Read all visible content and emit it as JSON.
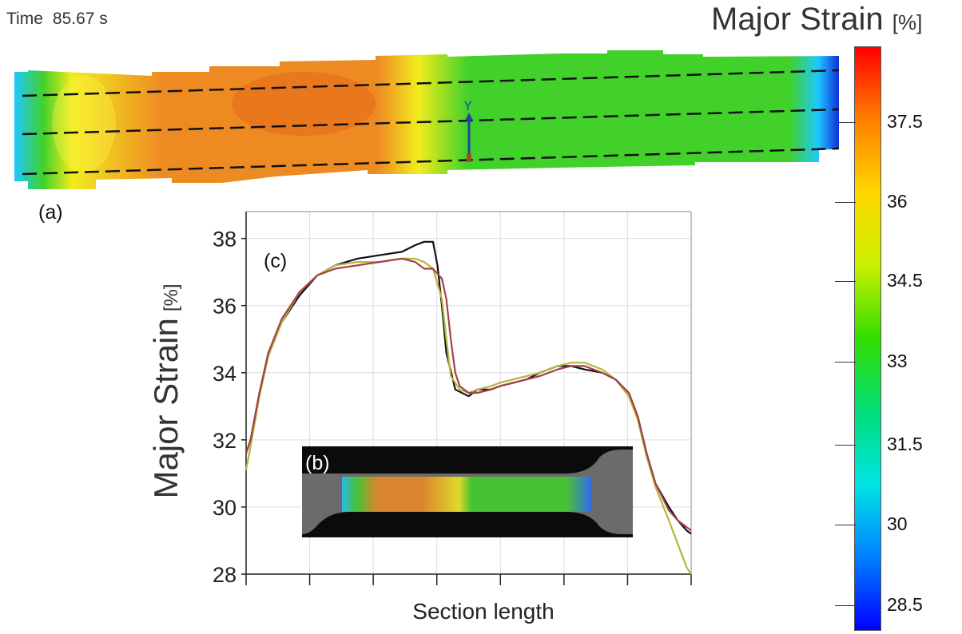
{
  "time": {
    "label": "Time",
    "value": "85.67 s"
  },
  "colorbar": {
    "title": "Major Strain",
    "unit": "[%]",
    "ticks": [
      "37.5",
      "36",
      "34.5",
      "33",
      "31.5",
      "30",
      "28.5"
    ],
    "colors": [
      "#ff0000",
      "#ff8000",
      "#ffd700",
      "#c8f000",
      "#33dd00",
      "#00dd77",
      "#00e5e5",
      "#0080ff",
      "#0000ff"
    ]
  },
  "specimen": {
    "label": "(a)",
    "axis_label": "Y",
    "colors": {
      "low": "#1ec8ff",
      "mid": "#41d12a",
      "yellow": "#f2ec1e",
      "orange": "#ee8a22"
    }
  },
  "inset": {
    "label": "(b)"
  },
  "chart_data": {
    "type": "line",
    "panel_label": "(c)",
    "xlabel": "Section length",
    "ylabel": "Major Strain",
    "ylabel_unit": "[%]",
    "ylim": [
      28,
      38.8
    ],
    "xlim": [
      0,
      100
    ],
    "yticks": [
      28,
      30,
      32,
      34,
      36,
      38
    ],
    "grid": true,
    "series": [
      {
        "color": "#111111",
        "x": [
          0,
          1,
          3,
          5,
          8,
          12,
          16,
          20,
          25,
          30,
          35,
          38,
          40,
          42,
          43,
          44,
          45,
          47,
          50,
          52,
          55,
          57,
          60,
          63,
          66,
          70,
          73,
          76,
          80,
          83,
          86,
          88,
          90,
          92,
          95,
          97,
          99,
          100
        ],
        "y": [
          31.6,
          32,
          33.4,
          34.6,
          35.5,
          36.3,
          36.9,
          37.2,
          37.4,
          37.5,
          37.6,
          37.8,
          37.9,
          37.9,
          37.2,
          36,
          34.6,
          33.5,
          33.3,
          33.5,
          33.5,
          33.6,
          33.7,
          33.8,
          34.0,
          34.2,
          34.2,
          34.1,
          34.0,
          33.8,
          33.4,
          32.7,
          31.6,
          30.7,
          30.0,
          29.6,
          29.3,
          29.2
        ]
      },
      {
        "color": "#b5b83c",
        "x": [
          0,
          1,
          3,
          5,
          8,
          12,
          16,
          20,
          25,
          30,
          35,
          38,
          40,
          42,
          44,
          45,
          46,
          48,
          50,
          52,
          55,
          57,
          60,
          63,
          66,
          70,
          73,
          76,
          80,
          83,
          86,
          88,
          90,
          92,
          95,
          97,
          99,
          100
        ],
        "y": [
          31.1,
          31.8,
          33.3,
          34.5,
          35.5,
          36.4,
          36.9,
          37.2,
          37.3,
          37.3,
          37.4,
          37.4,
          37.3,
          37.1,
          36.2,
          35,
          33.9,
          33.5,
          33.4,
          33.5,
          33.6,
          33.7,
          33.8,
          33.9,
          34.0,
          34.2,
          34.3,
          34.3,
          34.1,
          33.8,
          33.3,
          32.6,
          31.5,
          30.6,
          29.6,
          28.9,
          28.2,
          28.0
        ]
      },
      {
        "color": "#a3424a",
        "x": [
          0,
          1,
          3,
          5,
          8,
          12,
          16,
          20,
          25,
          30,
          35,
          38,
          40,
          42,
          44,
          45,
          46,
          47,
          48,
          50,
          52,
          55,
          57,
          60,
          63,
          66,
          70,
          73,
          76,
          80,
          83,
          86,
          88,
          90,
          92,
          95,
          97,
          99,
          100
        ],
        "y": [
          31.6,
          32,
          33.4,
          34.6,
          35.6,
          36.4,
          36.9,
          37.1,
          37.2,
          37.3,
          37.4,
          37.3,
          37.1,
          37.1,
          36.8,
          36.2,
          35.0,
          34.0,
          33.6,
          33.4,
          33.4,
          33.5,
          33.6,
          33.7,
          33.8,
          33.9,
          34.1,
          34.2,
          34.2,
          34.0,
          33.8,
          33.4,
          32.7,
          31.6,
          30.7,
          29.9,
          29.6,
          29.4,
          29.3
        ]
      }
    ]
  }
}
